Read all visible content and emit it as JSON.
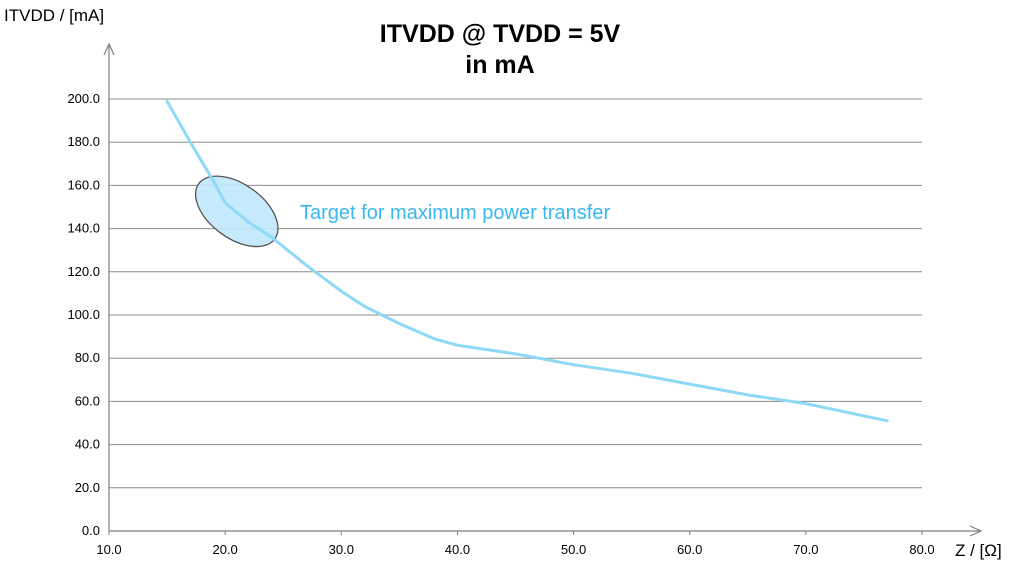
{
  "chart_data": {
    "type": "line",
    "title": "ITVDD @ TVDD = 5V",
    "subtitle": "in mA",
    "xlabel": "Z / [Ω]",
    "ylabel": "ITVDD / [mA]",
    "xlim": [
      10,
      80
    ],
    "ylim": [
      0,
      200
    ],
    "x_ticks": [
      "10.0",
      "20.0",
      "30.0",
      "40.0",
      "50.0",
      "60.0",
      "70.0",
      "80.0"
    ],
    "y_ticks": [
      "0.0",
      "20.0",
      "40.0",
      "60.0",
      "80.0",
      "100.0",
      "120.0",
      "140.0",
      "160.0",
      "180.0",
      "200.0"
    ],
    "grid": "horizontal",
    "series": [
      {
        "color": "#8fd8f6",
        "x": [
          15,
          17,
          19,
          20,
          22,
          24,
          27,
          30,
          32,
          35,
          38,
          40,
          45,
          50,
          55,
          60,
          65,
          70,
          77
        ],
        "y": [
          199,
          180,
          162,
          152,
          143,
          136,
          123,
          111,
          104,
          96,
          89,
          86,
          82,
          77,
          73,
          68,
          63,
          59,
          51
        ]
      }
    ],
    "annotation": {
      "text": "Target for maximum  power transfer",
      "color": "#38b8ee",
      "ellipse_center": [
        21,
        148
      ],
      "ellipse_fill": "#bfe8fb",
      "ellipse_stroke": "#555555"
    }
  }
}
